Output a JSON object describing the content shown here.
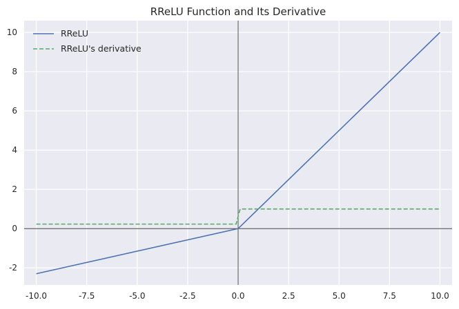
{
  "chart_data": {
    "type": "line",
    "title": "RReLU Function and Its Derivative",
    "xlabel": "",
    "ylabel": "",
    "xlim": [
      -10.6,
      10.6
    ],
    "ylim": [
      -2.87,
      10.6
    ],
    "xticks": [
      -10.0,
      -7.5,
      -5.0,
      -2.5,
      0.0,
      2.5,
      5.0,
      7.5,
      10.0
    ],
    "xtick_labels": [
      "-10.0",
      "-7.5",
      "-5.0",
      "-2.5",
      "0.0",
      "2.5",
      "5.0",
      "7.5",
      "10.0"
    ],
    "yticks": [
      -2,
      0,
      2,
      4,
      6,
      8,
      10
    ],
    "ytick_labels": [
      "-2",
      "0",
      "2",
      "4",
      "6",
      "8",
      "10"
    ],
    "grid": true,
    "legend_position": "top-left",
    "series": [
      {
        "name": "RReLU",
        "color": "#4c72b0",
        "style": "solid",
        "x": [
          -10,
          0,
          10
        ],
        "y": [
          -2.3,
          0,
          10
        ]
      },
      {
        "name": "RReLU's derivative",
        "color": "#55a868",
        "style": "dashed",
        "x": [
          -10,
          -0.1,
          0.1,
          10
        ],
        "y": [
          0.23,
          0.23,
          1,
          1
        ]
      }
    ]
  }
}
